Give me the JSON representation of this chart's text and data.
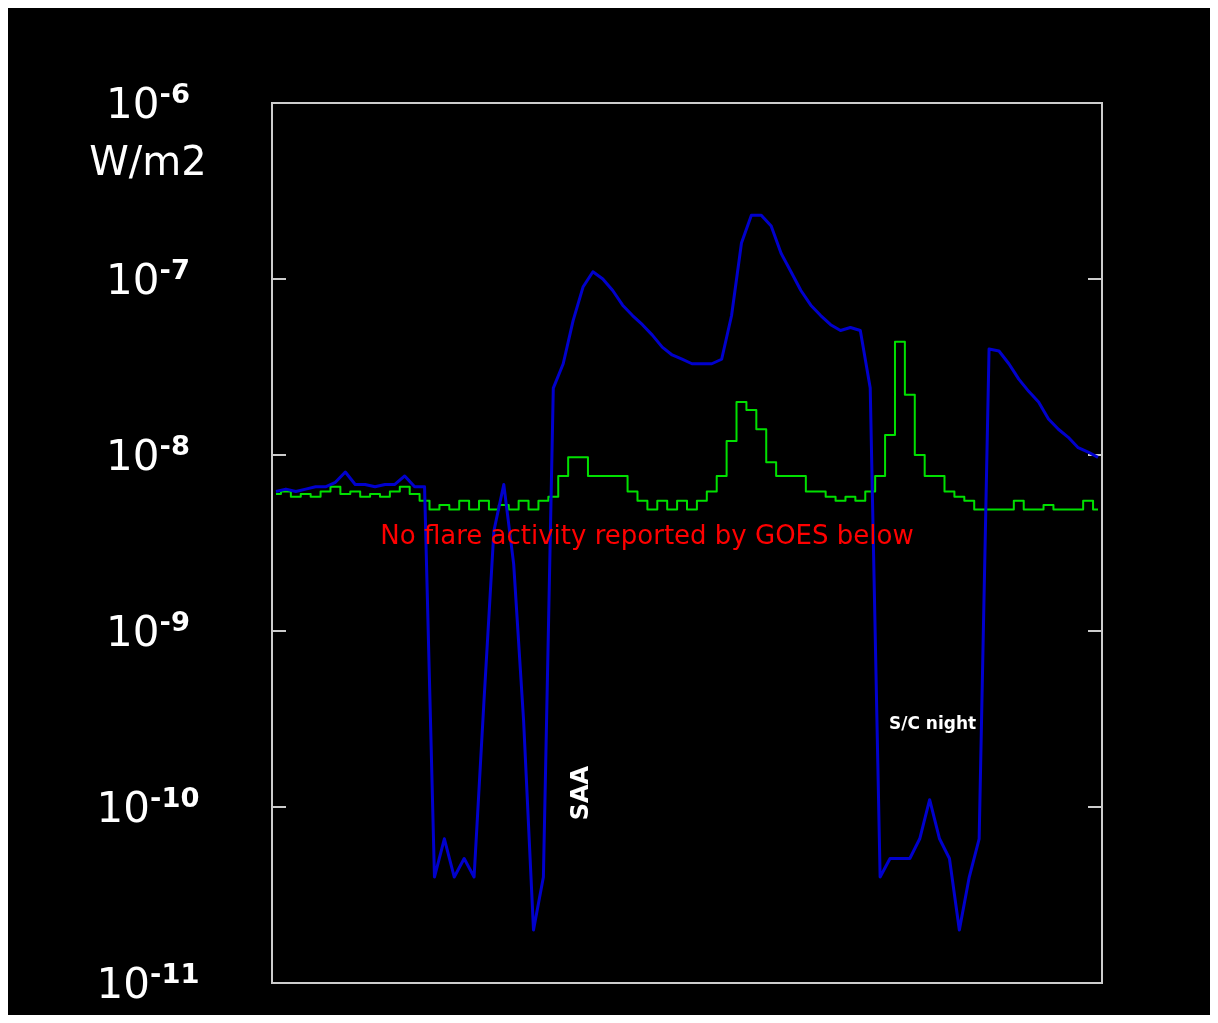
{
  "chart_data": {
    "type": "line",
    "ylabel": "W/m2",
    "log": true,
    "ylim": [
      1e-11,
      1e-06
    ],
    "yticks": [
      {
        "value": 1e-06,
        "label": "10$^{-6}$"
      },
      {
        "value": 1e-07,
        "label": "10$^{-7}$"
      },
      {
        "value": 1e-08,
        "label": "10$^{-8}$"
      },
      {
        "value": 1e-09,
        "label": "10$^{-9}$"
      },
      {
        "value": 1e-10,
        "label": "10$^{-10}$"
      },
      {
        "value": 1e-11,
        "label": "10$^{-11}$"
      }
    ],
    "tick_labels": "y",
    "categories": [
      null,
      null,
      null,
      null,
      null,
      null,
      null,
      null,
      null,
      null,
      null,
      null,
      null,
      null,
      null,
      null,
      null,
      null,
      null,
      null,
      null,
      null,
      null,
      null,
      null,
      null,
      null,
      null,
      null,
      null,
      null,
      null,
      null,
      null,
      null,
      null,
      null,
      null,
      null,
      null,
      null,
      null,
      null,
      null,
      null,
      null,
      null,
      null,
      null,
      null,
      null,
      null,
      null,
      null,
      null,
      null,
      null,
      null,
      null,
      null,
      null,
      null,
      null,
      null,
      null,
      null,
      null,
      null,
      null,
      null,
      null,
      null,
      null,
      null,
      null,
      null,
      null,
      null,
      null,
      null,
      null,
      null,
      null,
      null
    ],
    "series": [
      {
        "type": "step",
        "color": "#00e000",
        "values": [
          6e-09,
          6.2e-09,
          5.8e-09,
          6e-09,
          5.8e-09,
          6.2e-09,
          6.6e-09,
          6e-09,
          6.2e-09,
          5.8e-09,
          6e-09,
          5.8e-09,
          6.2e-09,
          6.6e-09,
          6e-09,
          5.5e-09,
          4.9e-09,
          5.2e-09,
          4.9e-09,
          5.5e-09,
          4.9e-09,
          5.5e-09,
          4.9e-09,
          5.2e-09,
          4.9e-09,
          5.5e-09,
          4.9e-09,
          5.5e-09,
          5.8e-09,
          7.6e-09,
          9.7e-09,
          9.7e-09,
          7.6e-09,
          7.6e-09,
          7.6e-09,
          7.6e-09,
          6.2e-09,
          5.5e-09,
          4.9e-09,
          5.5e-09,
          4.9e-09,
          5.5e-09,
          4.9e-09,
          5.5e-09,
          6.2e-09,
          7.6e-09,
          1.2e-08,
          2e-08,
          1.8e-08,
          1.4e-08,
          9.1e-09,
          7.6e-09,
          7.6e-09,
          7.6e-09,
          6.2e-09,
          6.2e-09,
          5.8e-09,
          5.5e-09,
          5.8e-09,
          5.5e-09,
          6.2e-09,
          7.6e-09,
          1.3e-08,
          4.4e-08,
          2.2e-08,
          1e-08,
          7.6e-09,
          7.6e-09,
          6.2e-09,
          5.8e-09,
          5.5e-09,
          4.9e-09,
          4.9e-09,
          4.9e-09,
          4.9e-09,
          5.5e-09,
          4.9e-09,
          4.9e-09,
          5.2e-09,
          4.9e-09,
          4.9e-09,
          4.9e-09,
          5.5e-09,
          4.9e-09
        ]
      },
      {
        "color": "#0000cc",
        "values": [
          6.2e-09,
          6.4e-09,
          6.2e-09,
          6.4e-09,
          6.6e-09,
          6.6e-09,
          7e-09,
          8e-09,
          6.8e-09,
          6.8e-09,
          6.6e-09,
          6.8e-09,
          6.8e-09,
          7.6e-09,
          6.6e-09,
          6.6e-09,
          4e-11,
          6.6e-11,
          4e-11,
          5.1e-11,
          4e-11,
          4e-10,
          3.7e-09,
          6.8e-09,
          2.4e-09,
          3.1e-10,
          2e-11,
          4e-11,
          2.4e-08,
          3.3e-08,
          5.8e-08,
          9e-08,
          1.1e-07,
          1e-07,
          8.6e-08,
          7.1e-08,
          6.2e-08,
          5.5e-08,
          4.8e-08,
          4.1e-08,
          3.7e-08,
          3.5e-08,
          3.3e-08,
          3.3e-08,
          3.3e-08,
          3.5e-08,
          6.2e-08,
          1.6e-07,
          2.3e-07,
          2.3e-07,
          2e-07,
          1.4e-07,
          1.1e-07,
          8.6e-08,
          7.1e-08,
          6.2e-08,
          5.5e-08,
          5.1e-08,
          5.3e-08,
          5.1e-08,
          2.4e-08,
          4e-11,
          5.1e-11,
          5.1e-11,
          5.1e-11,
          6.6e-11,
          1.1e-10,
          6.6e-11,
          5.1e-11,
          2e-11,
          4e-11,
          6.6e-11,
          4e-08,
          3.9e-08,
          3.3e-08,
          2.7e-08,
          2.3e-08,
          2e-08,
          1.6e-08,
          1.4e-08,
          1.26e-08,
          1.1e-08,
          1.04e-08,
          9.7e-09
        ]
      }
    ],
    "annotations": [
      "No flare activity reported by GOES below",
      "SAA",
      "S/C night"
    ]
  }
}
